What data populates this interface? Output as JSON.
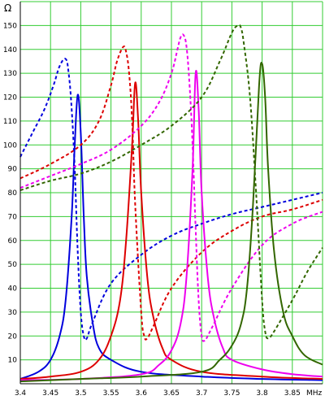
{
  "chart_data": {
    "type": "line",
    "title": "",
    "xlabel": "",
    "ylabel": "",
    "x_unit": "MHz",
    "y_unit": "Ω",
    "xlim": [
      3.4,
      3.9
    ],
    "ylim": [
      0,
      160
    ],
    "x_ticks": [
      3.4,
      3.45,
      3.5,
      3.55,
      3.6,
      3.65,
      3.7,
      3.75,
      3.8,
      3.85
    ],
    "x_tick_labels": [
      "3.4",
      "3.45",
      "3.5",
      "3.55",
      "3.6",
      "3.65",
      "3.7",
      "3.75",
      "3.8",
      "3.85"
    ],
    "y_ticks": [
      10,
      20,
      30,
      40,
      50,
      60,
      70,
      80,
      90,
      100,
      110,
      120,
      130,
      140,
      150
    ],
    "y_tick_labels": [
      "10",
      "20",
      "30",
      "40",
      "50",
      "60",
      "70",
      "80",
      "90",
      "100",
      "110",
      "120",
      "130",
      "140",
      "150"
    ],
    "grid": true,
    "colors": {
      "grid": "#33cc33",
      "blue": "#0000dd",
      "red": "#dd0000",
      "magenta": "#ee00ee",
      "green": "#336600"
    },
    "series": [
      {
        "color": "#0000dd",
        "style": "solid",
        "x": [
          3.4,
          3.43,
          3.45,
          3.465,
          3.475,
          3.485,
          3.49,
          3.495,
          3.5,
          3.505,
          3.51,
          3.52,
          3.53,
          3.55,
          3.6,
          3.7,
          3.8,
          3.9
        ],
        "y": [
          2,
          5,
          10,
          20,
          35,
          70,
          100,
          121,
          105,
          70,
          45,
          25,
          15,
          10,
          5,
          3,
          2,
          1.5
        ]
      },
      {
        "color": "#0000dd",
        "style": "dashed",
        "x": [
          3.4,
          3.42,
          3.44,
          3.455,
          3.465,
          3.475,
          3.48,
          3.485,
          3.49,
          3.495,
          3.5,
          3.505,
          3.51,
          3.52,
          3.55,
          3.6,
          3.65,
          3.7,
          3.75,
          3.8,
          3.85,
          3.9
        ],
        "y": [
          95,
          105,
          115,
          125,
          133,
          136,
          130,
          115,
          90,
          55,
          30,
          20,
          19,
          26,
          42,
          54,
          62,
          67,
          71,
          74,
          77,
          80
        ]
      },
      {
        "color": "#dd0000",
        "style": "solid",
        "x": [
          3.4,
          3.45,
          3.5,
          3.53,
          3.55,
          3.565,
          3.575,
          3.585,
          3.59,
          3.595,
          3.6,
          3.61,
          3.62,
          3.635,
          3.65,
          3.7,
          3.8,
          3.9
        ],
        "y": [
          2,
          3,
          5,
          10,
          20,
          35,
          60,
          100,
          126,
          110,
          80,
          45,
          28,
          15,
          10,
          5,
          3,
          2
        ]
      },
      {
        "color": "#dd0000",
        "style": "dashed",
        "x": [
          3.4,
          3.45,
          3.5,
          3.53,
          3.55,
          3.56,
          3.57,
          3.575,
          3.58,
          3.585,
          3.59,
          3.6,
          3.605,
          3.61,
          3.62,
          3.65,
          3.7,
          3.75,
          3.8,
          3.85,
          3.9
        ],
        "y": [
          86,
          92,
          100,
          110,
          125,
          135,
          141,
          139,
          130,
          110,
          75,
          30,
          20,
          19,
          24,
          40,
          55,
          64,
          70,
          73,
          77
        ]
      },
      {
        "color": "#ee00ee",
        "style": "solid",
        "x": [
          3.4,
          3.5,
          3.6,
          3.63,
          3.65,
          3.665,
          3.675,
          3.685,
          3.69,
          3.695,
          3.7,
          3.71,
          3.72,
          3.735,
          3.75,
          3.8,
          3.85,
          3.9
        ],
        "y": [
          1.5,
          2,
          4,
          8,
          14,
          25,
          45,
          90,
          130,
          115,
          80,
          45,
          28,
          15,
          10,
          6,
          4,
          3
        ]
      },
      {
        "color": "#ee00ee",
        "style": "dashed",
        "x": [
          3.4,
          3.45,
          3.5,
          3.55,
          3.6,
          3.63,
          3.65,
          3.66,
          3.665,
          3.67,
          3.675,
          3.68,
          3.685,
          3.69,
          3.695,
          3.7,
          3.705,
          3.71,
          3.72,
          3.75,
          3.8,
          3.85,
          3.9
        ],
        "y": [
          82,
          87,
          92,
          98,
          108,
          118,
          130,
          140,
          145,
          146,
          141,
          125,
          100,
          65,
          35,
          20,
          18,
          20,
          25,
          40,
          58,
          67,
          72
        ]
      },
      {
        "color": "#336600",
        "style": "solid",
        "x": [
          3.4,
          3.5,
          3.6,
          3.7,
          3.73,
          3.75,
          3.765,
          3.775,
          3.785,
          3.795,
          3.8,
          3.805,
          3.81,
          3.82,
          3.835,
          3.85,
          3.87,
          3.9
        ],
        "y": [
          1,
          2,
          3,
          5,
          10,
          16,
          25,
          40,
          75,
          125,
          134,
          120,
          90,
          55,
          30,
          20,
          12,
          8
        ]
      },
      {
        "color": "#336600",
        "style": "dashed",
        "x": [
          3.4,
          3.45,
          3.5,
          3.55,
          3.6,
          3.65,
          3.7,
          3.73,
          3.75,
          3.76,
          3.765,
          3.77,
          3.78,
          3.79,
          3.8,
          3.805,
          3.81,
          3.82,
          3.85,
          3.875,
          3.9
        ],
        "y": [
          81,
          85,
          88,
          93,
          100,
          108,
          120,
          135,
          147,
          150,
          149,
          142,
          120,
          80,
          35,
          22,
          19,
          22,
          35,
          47,
          57
        ]
      }
    ]
  }
}
